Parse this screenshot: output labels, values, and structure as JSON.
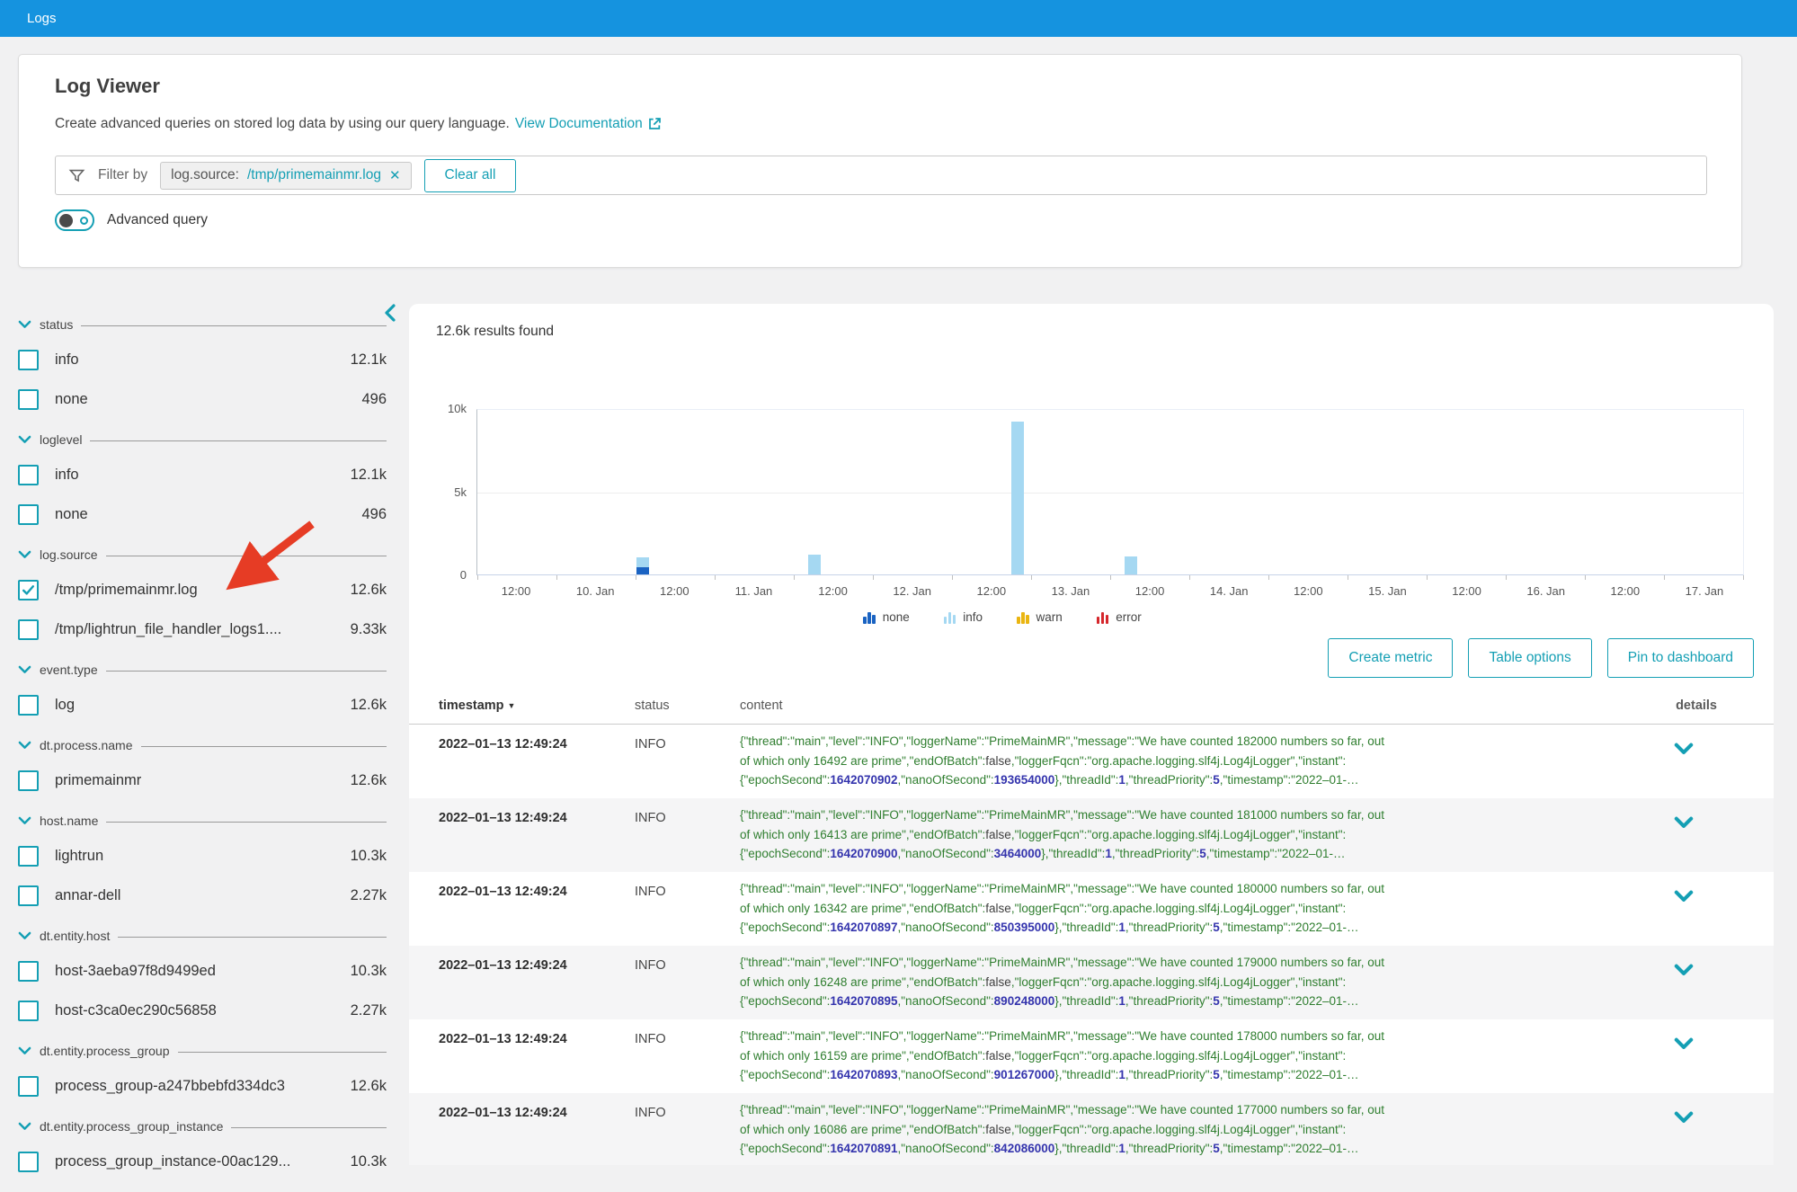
{
  "topbar": {
    "title": "Logs"
  },
  "header": {
    "title": "Log Viewer",
    "subtitle": "Create advanced queries on stored log data by using our query language.",
    "doc_link": "View Documentation"
  },
  "filter": {
    "label": "Filter by",
    "chip_key": "log.source:",
    "chip_value": "/tmp/primemainmr.log",
    "clear_all": "Clear all",
    "advanced_query": "Advanced query"
  },
  "sidebar": {
    "facets": [
      {
        "name": "status",
        "items": [
          {
            "label": "info",
            "count": "12.1k",
            "checked": false
          },
          {
            "label": "none",
            "count": "496",
            "checked": false
          }
        ]
      },
      {
        "name": "loglevel",
        "items": [
          {
            "label": "info",
            "count": "12.1k",
            "checked": false
          },
          {
            "label": "none",
            "count": "496",
            "checked": false
          }
        ]
      },
      {
        "name": "log.source",
        "items": [
          {
            "label": "/tmp/primemainmr.log",
            "count": "12.6k",
            "checked": true
          },
          {
            "label": "/tmp/lightrun_file_handler_logs1....",
            "count": "9.33k",
            "checked": false
          }
        ]
      },
      {
        "name": "event.type",
        "items": [
          {
            "label": "log",
            "count": "12.6k",
            "checked": false
          }
        ]
      },
      {
        "name": "dt.process.name",
        "items": [
          {
            "label": "primemainmr",
            "count": "12.6k",
            "checked": false
          }
        ]
      },
      {
        "name": "host.name",
        "items": [
          {
            "label": "lightrun",
            "count": "10.3k",
            "checked": false
          },
          {
            "label": "annar-dell",
            "count": "2.27k",
            "checked": false
          }
        ]
      },
      {
        "name": "dt.entity.host",
        "items": [
          {
            "label": "host-3aeba97f8d9499ed",
            "count": "10.3k",
            "checked": false
          },
          {
            "label": "host-c3ca0ec290c56858",
            "count": "2.27k",
            "checked": false
          }
        ]
      },
      {
        "name": "dt.entity.process_group",
        "items": [
          {
            "label": "process_group-a247bbebfd334dc3",
            "count": "12.6k",
            "checked": false
          }
        ]
      },
      {
        "name": "dt.entity.process_group_instance",
        "items": [
          {
            "label": "process_group_instance-00ac129...",
            "count": "10.3k",
            "checked": false
          }
        ]
      }
    ]
  },
  "results": {
    "count_text": "12.6k results found"
  },
  "chart_data": {
    "type": "bar",
    "title": "12.6k results found",
    "stacked": true,
    "ylim": [
      0,
      10000
    ],
    "yticks": [
      {
        "label": "0",
        "frac": 0
      },
      {
        "label": "5k",
        "frac": 0.5
      },
      {
        "label": "10k",
        "frac": 1
      }
    ],
    "x_labels": [
      "12:00",
      "10. Jan",
      "12:00",
      "11. Jan",
      "12:00",
      "12. Jan",
      "12:00",
      "13. Jan",
      "12:00",
      "14. Jan",
      "12:00",
      "15. Jan",
      "12:00",
      "16. Jan",
      "12:00",
      "17. Jan"
    ],
    "series_order": [
      "none",
      "info",
      "warn",
      "error"
    ],
    "colors": {
      "none": "#1a63c2",
      "info": "#a5d8f2",
      "warn": "#eab511",
      "error": "#d5272c"
    },
    "bars": [
      {
        "x_frac": 0.131,
        "values": {
          "none": 450,
          "info": 560
        }
      },
      {
        "x_frac": 0.266,
        "values": {
          "info": 1200
        }
      },
      {
        "x_frac": 0.427,
        "values": {
          "info": 9200
        }
      },
      {
        "x_frac": 0.516,
        "values": {
          "info": 1100
        }
      }
    ],
    "legend": [
      "none",
      "info",
      "warn",
      "error"
    ],
    "legend_position": "bottom-center",
    "grid": "horizontal-at-5k"
  },
  "actions": [
    "Create metric",
    "Table options",
    "Pin to dashboard"
  ],
  "table": {
    "columns": [
      "timestamp",
      "status",
      "content",
      "details"
    ],
    "row_template": {
      "l1_prefix": "{\"thread\":\"main\",\"level\":\"INFO\",\"loggerName\":\"PrimeMainMR\",\"message\":\"We have counted ",
      "l1_suffix": " numbers so far, out",
      "l2_prefix": "of which only ",
      "l2_mid": " are prime\",\"endOfBatch\":",
      "l2_bool": "false",
      "l2_suffix": ",\"loggerFqcn\":\"org.apache.logging.slf4j.Log4jLogger\",\"instant\":",
      "l3_p1": "{\"epochSecond\":",
      "l3_p2": ",\"nanoOfSecond\":",
      "l3_p3": "},\"threadId\":",
      "l3_tid": "1",
      "l3_p4": ",\"threadPriority\":",
      "l3_tp": "5",
      "l3_p5": ",\"timestamp\":\"2022–01-…"
    },
    "rows": [
      {
        "timestamp": "2022–01–13 12:49:24",
        "status": "INFO",
        "counted": "182000",
        "prime": "16492",
        "epoch": "1642070902",
        "nano": "193654000"
      },
      {
        "timestamp": "2022–01–13 12:49:24",
        "status": "INFO",
        "counted": "181000",
        "prime": "16413",
        "epoch": "1642070900",
        "nano": "3464000"
      },
      {
        "timestamp": "2022–01–13 12:49:24",
        "status": "INFO",
        "counted": "180000",
        "prime": "16342",
        "epoch": "1642070897",
        "nano": "850395000"
      },
      {
        "timestamp": "2022–01–13 12:49:24",
        "status": "INFO",
        "counted": "179000",
        "prime": "16248",
        "epoch": "1642070895",
        "nano": "890248000"
      },
      {
        "timestamp": "2022–01–13 12:49:24",
        "status": "INFO",
        "counted": "178000",
        "prime": "16159",
        "epoch": "1642070893",
        "nano": "901267000"
      },
      {
        "timestamp": "2022–01–13 12:49:24",
        "status": "INFO",
        "counted": "177000",
        "prime": "16086",
        "epoch": "1642070891",
        "nano": "842086000"
      }
    ]
  },
  "annotation": {
    "shape": "red-arrow",
    "points_to": "log.source /tmp/primemainmr.log checkbox",
    "color": "#e63c25"
  }
}
